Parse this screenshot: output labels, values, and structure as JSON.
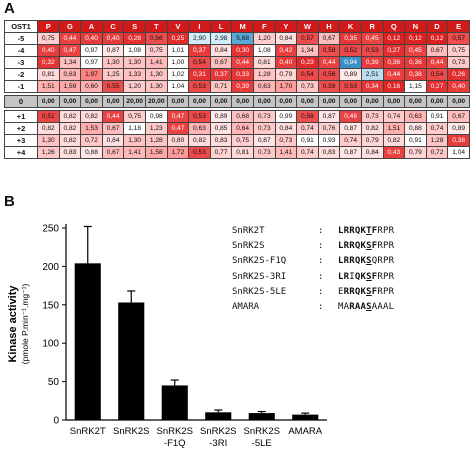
{
  "panel_a": {
    "label": "A",
    "corner": "OST1",
    "columns": [
      "P",
      "G",
      "A",
      "C",
      "S",
      "T",
      "V",
      "I",
      "L",
      "M",
      "F",
      "Y",
      "W",
      "H",
      "K",
      "R",
      "Q",
      "N",
      "D",
      "E"
    ],
    "rows": [
      {
        "pos": "-5",
        "cells": [
          "0,75",
          "0,44",
          "0,40",
          "0,40",
          "0,28",
          "0,56",
          "0,25",
          "2,90",
          "2,98",
          "5,68",
          "1,20",
          "0,84",
          "0,57",
          "0,67",
          "0,35",
          "0,45",
          "0,12",
          "0,12",
          "0,12",
          "0,57"
        ]
      },
      {
        "pos": "-4",
        "cells": [
          "0,40",
          "0,47",
          "0,97",
          "0,87",
          "1,08",
          "0,75",
          "1,01",
          "0,37",
          "0,84",
          "0,30",
          "1,08",
          "0,42",
          "1,34",
          "0,59",
          "0,52",
          "0,53",
          "0,27",
          "0,45",
          "0,67",
          "0,75"
        ]
      },
      {
        "pos": "-3",
        "cells": [
          "0,32",
          "1,34",
          "0,97",
          "1,30",
          "1,30",
          "1,41",
          "1,00",
          "0,54",
          "0,67",
          "0,44",
          "0,81",
          "0,40",
          "0,23",
          "0,44",
          "0,94",
          "0,39",
          "0,36",
          "0,36",
          "0,44",
          "0,73"
        ]
      },
      {
        "pos": "-2",
        "cells": [
          "0,81",
          "0,63",
          "1,97",
          "1,25",
          "1,33",
          "1,30",
          "1,02",
          "0,31",
          "0,37",
          "0,33",
          "1,28",
          "0,79",
          "0,54",
          "0,56",
          "0,89",
          "2,51",
          "0,44",
          "0,38",
          "0,54",
          "0,26"
        ]
      },
      {
        "pos": "-1",
        "cells": [
          "1,51",
          "1,59",
          "0,60",
          "0,55",
          "1,20",
          "1,30",
          "1,04",
          "0,53",
          "0,71",
          "0,39",
          "0,63",
          "1,70",
          "0,73",
          "0,59",
          "0,53",
          "0,34",
          "0,16",
          "1,15",
          "0,27",
          "0,40"
        ]
      },
      {
        "pos": "0",
        "zero": true,
        "cells": [
          "0,00",
          "0,00",
          "0,00",
          "0,00",
          "20,00",
          "20,00",
          "0,00",
          "0,00",
          "0,00",
          "0,00",
          "0,00",
          "0,00",
          "0,00",
          "0,00",
          "0,00",
          "0,00",
          "0,00",
          "0,00",
          "0,00",
          "0,00"
        ]
      },
      {
        "pos": "+1",
        "cells": [
          "0,51",
          "0,82",
          "0,82",
          "0,44",
          "0,75",
          "0,98",
          "0,47",
          "0,53",
          "0,89",
          "0,68",
          "0,73",
          "0,99",
          "0,58",
          "0,87",
          "0,46",
          "0,73",
          "0,74",
          "0,63",
          "0,91",
          "0,67"
        ]
      },
      {
        "pos": "+2",
        "cells": [
          "0,82",
          "0,82",
          "1,53",
          "0,67",
          "1,18",
          "1,23",
          "0,47",
          "0,63",
          "0,85",
          "0,64",
          "0,73",
          "0,84",
          "0,74",
          "0,76",
          "0,87",
          "0,82",
          "1,51",
          "0,88",
          "0,74",
          "0,89"
        ]
      },
      {
        "pos": "+3",
        "cells": [
          "1,30",
          "0,82",
          "0,72",
          "0,84",
          "1,30",
          "1,28",
          "0,80",
          "0,82",
          "0,83",
          "0,75",
          "0,87",
          "0,73",
          "0,91",
          "0,93",
          "0,74",
          "0,79",
          "0,82",
          "0,91",
          "1,28",
          "0,38"
        ]
      },
      {
        "pos": "+4",
        "cells": [
          "1,26",
          "0,83",
          "0,88",
          "0,67",
          "1,41",
          "1,58",
          "1,72",
          "0,53",
          "0,77",
          "0,81",
          "0,73",
          "1,41",
          "0,74",
          "0,83",
          "0,87",
          "0,84",
          "0,43",
          "0,79",
          "0,72",
          "1,04"
        ]
      }
    ]
  },
  "panel_b": {
    "label": "B",
    "sequences": [
      {
        "name": "SnRK2T",
        "seq": "LRRQKTFRPR",
        "bold": [
          0,
          1,
          2,
          3,
          4,
          5,
          6
        ],
        "underline": [
          5
        ]
      },
      {
        "name": "SnRK2S",
        "seq": "LRRQKSFRPR",
        "bold": [
          0,
          1,
          2,
          3,
          4,
          5,
          6
        ],
        "underline": [
          5
        ]
      },
      {
        "name": "SnRK2S-F1Q",
        "seq": "LRRQKSQRPR",
        "bold": [
          0,
          1,
          2,
          3,
          4,
          5
        ],
        "underline": [
          5
        ]
      },
      {
        "name": "SnRK2S-3RI",
        "seq": "LRIQKSFRPR",
        "bold": [
          0,
          1,
          3,
          4,
          5,
          6
        ],
        "underline": [
          5
        ]
      },
      {
        "name": "SnRK2S-5LE",
        "seq": "ERRQKSFRPR",
        "bold": [
          1,
          2,
          3,
          4,
          5,
          6
        ],
        "underline": [
          5
        ]
      },
      {
        "name": "AMARA",
        "seq": "MARAASAAAL",
        "bold": [
          2,
          3,
          4,
          5
        ],
        "underline": [
          5
        ]
      }
    ],
    "colon": ":"
  },
  "chart_data": {
    "type": "bar",
    "categories": [
      "SnRK2T",
      "SnRK2S",
      "SnRK2S\n-F1Q",
      "SnRK2S\n-3RI",
      "SnRK2S\n-5LE",
      "AMARA"
    ],
    "values": [
      204,
      153,
      45,
      10,
      9,
      7
    ],
    "errors": [
      48,
      15,
      7,
      3,
      2,
      2
    ],
    "ylabel": "Kinase activity",
    "ylabel2": "(pmole P.min⁻¹.mg⁻¹)",
    "ylim": [
      0,
      250
    ],
    "yticks": [
      0,
      50,
      100,
      150,
      200,
      250
    ],
    "bar_color": "#000000"
  }
}
